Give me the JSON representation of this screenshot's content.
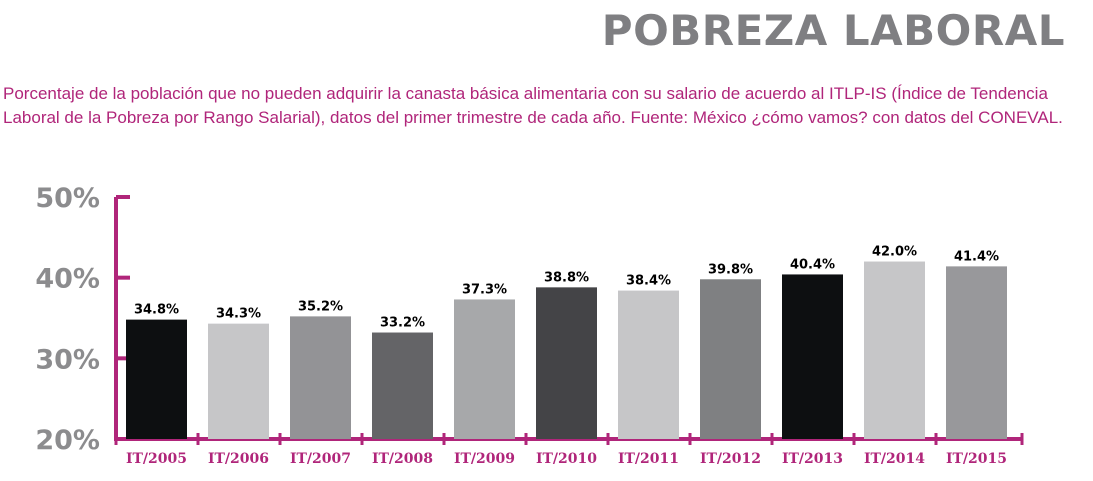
{
  "title": "POBREZA LABORAL",
  "subtitle": "Porcentaje de la población que no pueden adquirir la canasta básica alimentaria con su salario de acuerdo al ITLP-IS (Índice de Tendencia Laboral de la Pobreza por Rango Salarial), datos del primer trimestre de cada año. Fuente: México ¿cómo vamos? con datos del CONEVAL.",
  "colors": {
    "accent": "#b0257a",
    "title": "#7f7f82",
    "ytick": "#8c8c8e",
    "label": "#000000"
  },
  "chart_data": {
    "type": "bar",
    "categories": [
      "IT/2005",
      "IT/2006",
      "IT/2007",
      "IT/2008",
      "IT/2009",
      "IT/2010",
      "IT/2011",
      "IT/2012",
      "IT/2013",
      "IT/2014",
      "IT/2015"
    ],
    "values": [
      34.8,
      34.3,
      35.2,
      33.2,
      37.3,
      38.8,
      38.4,
      39.8,
      40.4,
      42.0,
      41.4
    ],
    "data_labels": [
      "34.8%",
      "34.3%",
      "35.2%",
      "33.2%",
      "37.3%",
      "38.8%",
      "38.4%",
      "39.8%",
      "40.4%",
      "42.0%",
      "41.4%"
    ],
    "bar_colors": [
      "#0d0f11",
      "#c6c6c8",
      "#939396",
      "#646467",
      "#a7a8aa",
      "#444447",
      "#c6c6c8",
      "#7f8082",
      "#0d0f11",
      "#c6c6c8",
      "#98989b"
    ],
    "y_ticks": [
      20,
      30,
      40,
      50
    ],
    "y_tick_labels": [
      "20%",
      "30%",
      "40%",
      "50%"
    ],
    "ylim": [
      20,
      50
    ],
    "xlabel": "",
    "ylabel": "",
    "grid": false,
    "legend": "none"
  }
}
